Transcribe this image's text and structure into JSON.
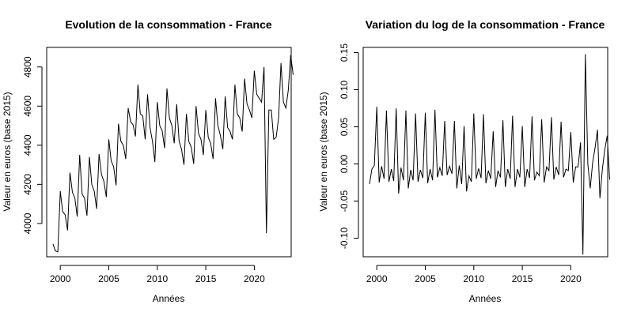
{
  "chart_data": [
    {
      "type": "line",
      "title": "Evolution de la consommation -  France",
      "xlabel": "Années",
      "ylabel": "Valeur en euros (base 2015)",
      "xlim": [
        1998.6,
        2023.8
      ],
      "ylim": [
        3830,
        4900
      ],
      "x_ticks": [
        2000,
        2005,
        2010,
        2015,
        2020
      ],
      "y_ticks": [
        4000,
        4200,
        4400,
        4600,
        4800
      ],
      "grid": false,
      "series": [
        {
          "x_start": 1999.25,
          "x_step": 0.25,
          "values": [
            3895,
            3860,
            3855,
            4165,
            4060,
            4045,
            3965,
            4260,
            4160,
            4130,
            4035,
            4350,
            4150,
            4130,
            4040,
            4340,
            4200,
            4165,
            4075,
            4355,
            4250,
            4215,
            4135,
            4430,
            4320,
            4290,
            4195,
            4510,
            4420,
            4400,
            4330,
            4590,
            4520,
            4505,
            4445,
            4710,
            4560,
            4550,
            4430,
            4660,
            4490,
            4420,
            4315,
            4620,
            4500,
            4475,
            4385,
            4690,
            4540,
            4500,
            4410,
            4610,
            4420,
            4380,
            4300,
            4560,
            4420,
            4390,
            4305,
            4600,
            4460,
            4430,
            4350,
            4580,
            4440,
            4410,
            4330,
            4640,
            4500,
            4450,
            4380,
            4650,
            4490,
            4470,
            4430,
            4710,
            4560,
            4540,
            4470,
            4740,
            4610,
            4580,
            4540,
            4780,
            4660,
            4640,
            4620,
            4800,
            3950,
            4580,
            4580,
            4430,
            4440,
            4540,
            4820,
            4620,
            4590,
            4680,
            4860,
            4760
          ]
        }
      ]
    },
    {
      "type": "line",
      "title": "Variation du log de la consommation -  France",
      "xlabel": "Années",
      "ylabel": "Valeur en euros (base 2015)",
      "xlim": [
        1998.6,
        2023.8
      ],
      "ylim": [
        -0.125,
        0.157
      ],
      "x_ticks": [
        2000,
        2005,
        2010,
        2015,
        2020
      ],
      "y_ticks": [
        -0.1,
        -0.05,
        0.0,
        0.05,
        0.1,
        0.15
      ],
      "grid": false,
      "series": [
        {
          "x_start": 1999.25,
          "x_step": 0.25,
          "values": [
            -0.027,
            -0.007,
            -0.002,
            0.077,
            -0.025,
            -0.003,
            -0.02,
            0.072,
            -0.024,
            -0.007,
            -0.023,
            0.075,
            -0.04,
            -0.005,
            -0.022,
            0.072,
            -0.033,
            -0.008,
            -0.022,
            0.068,
            -0.024,
            -0.008,
            -0.019,
            0.069,
            -0.026,
            -0.007,
            -0.022,
            0.073,
            -0.018,
            -0.005,
            -0.016,
            0.058,
            -0.015,
            -0.003,
            -0.013,
            0.058,
            -0.033,
            -0.002,
            -0.027,
            0.051,
            -0.037,
            -0.016,
            -0.024,
            0.068,
            -0.02,
            -0.006,
            -0.019,
            0.067,
            -0.026,
            -0.009,
            -0.02,
            0.044,
            -0.031,
            -0.009,
            -0.018,
            0.059,
            -0.031,
            -0.007,
            -0.02,
            0.065,
            -0.031,
            -0.007,
            -0.018,
            0.051,
            -0.031,
            -0.007,
            -0.019,
            0.064,
            -0.022,
            -0.011,
            -0.016,
            0.06,
            -0.025,
            -0.004,
            -0.009,
            0.063,
            -0.021,
            -0.004,
            -0.015,
            0.057,
            -0.018,
            -0.007,
            -0.009,
            0.043,
            -0.025,
            -0.004,
            -0.004,
            0.029,
            -0.122,
            0.148,
            0.0,
            -0.033,
            0.002,
            0.022,
            0.046,
            -0.046,
            -0.007,
            0.019,
            0.038,
            -0.021
          ]
        }
      ]
    }
  ]
}
